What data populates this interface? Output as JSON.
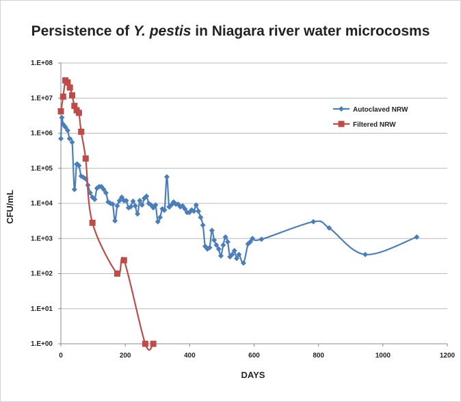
{
  "chart_data": {
    "type": "line",
    "title": {
      "before": "Persistence of ",
      "species": "Y. pestis",
      "after": " in Niagara river water microcosms"
    },
    "xlabel": "DAYS",
    "ylabel": "CFU/mL",
    "xlim": [
      0,
      1200
    ],
    "ylim": [
      1,
      100000000
    ],
    "yscale": "log",
    "grid": "horizontal",
    "legend_position": "top-right",
    "x_ticks": [
      "0",
      "200",
      "400",
      "600",
      "800",
      "1000",
      "1200"
    ],
    "x_tick_values": [
      0,
      200,
      400,
      600,
      800,
      1000,
      1200
    ],
    "y_ticks": [
      "1.E+00",
      "1.E+01",
      "1.E+02",
      "1.E+03",
      "1.E+04",
      "1.E+05",
      "1.E+06",
      "1.E+07",
      "1.E+08"
    ],
    "y_tick_values": [
      1,
      10,
      100,
      1000,
      10000,
      100000,
      1000000,
      10000000,
      100000000
    ],
    "series": [
      {
        "name": "Autoclaved NRW",
        "color": "#4a7ebb",
        "marker": "diamond",
        "smooth": true,
        "points": [
          [
            0,
            700000
          ],
          [
            3,
            2800000
          ],
          [
            7,
            1800000
          ],
          [
            14,
            1500000
          ],
          [
            21,
            1200000
          ],
          [
            27,
            700000
          ],
          [
            35,
            550000
          ],
          [
            42,
            25000
          ],
          [
            49,
            130000
          ],
          [
            56,
            120000
          ],
          [
            63,
            60000
          ],
          [
            70,
            55000
          ],
          [
            77,
            50000
          ],
          [
            84,
            33000
          ],
          [
            91,
            20000
          ],
          [
            98,
            15000
          ],
          [
            105,
            13000
          ],
          [
            112,
            27000
          ],
          [
            119,
            30000
          ],
          [
            126,
            30000
          ],
          [
            133,
            25000
          ],
          [
            140,
            20000
          ],
          [
            147,
            11000
          ],
          [
            154,
            10000
          ],
          [
            161,
            9500
          ],
          [
            168,
            3200
          ],
          [
            175,
            8500
          ],
          [
            182,
            12000
          ],
          [
            189,
            15000
          ],
          [
            196,
            12000
          ],
          [
            203,
            12000
          ],
          [
            210,
            7500
          ],
          [
            217,
            8000
          ],
          [
            224,
            11500
          ],
          [
            231,
            8500
          ],
          [
            238,
            5000
          ],
          [
            245,
            12000
          ],
          [
            252,
            9000
          ],
          [
            259,
            14000
          ],
          [
            266,
            16000
          ],
          [
            273,
            10000
          ],
          [
            280,
            9000
          ],
          [
            287,
            7500
          ],
          [
            294,
            9000
          ],
          [
            301,
            3000
          ],
          [
            308,
            4000
          ],
          [
            315,
            7000
          ],
          [
            322,
            6500
          ],
          [
            329,
            57000
          ],
          [
            336,
            8000
          ],
          [
            343,
            9000
          ],
          [
            350,
            11000
          ],
          [
            357,
            9500
          ],
          [
            364,
            9500
          ],
          [
            371,
            8000
          ],
          [
            378,
            8500
          ],
          [
            385,
            7000
          ],
          [
            392,
            5500
          ],
          [
            399,
            5500
          ],
          [
            406,
            6500
          ],
          [
            413,
            6000
          ],
          [
            420,
            9000
          ],
          [
            427,
            6000
          ],
          [
            434,
            4000
          ],
          [
            441,
            2400
          ],
          [
            448,
            600
          ],
          [
            455,
            500
          ],
          [
            462,
            550
          ],
          [
            469,
            1700
          ],
          [
            476,
            900
          ],
          [
            483,
            650
          ],
          [
            490,
            500
          ],
          [
            497,
            320
          ],
          [
            504,
            650
          ],
          [
            511,
            1100
          ],
          [
            518,
            800
          ],
          [
            525,
            300
          ],
          [
            532,
            350
          ],
          [
            539,
            450
          ],
          [
            546,
            270
          ],
          [
            553,
            350
          ],
          [
            567,
            200
          ],
          [
            581,
            700
          ],
          [
            588,
            800
          ],
          [
            595,
            1000
          ],
          [
            623,
            950
          ],
          [
            784,
            3000
          ],
          [
            833,
            2000
          ],
          [
            945,
            350
          ],
          [
            1105,
            1100
          ]
        ]
      },
      {
        "name": "Filtered NRW",
        "color": "#be4b48",
        "marker": "square",
        "smooth": true,
        "points": [
          [
            0,
            4200000
          ],
          [
            7,
            11000000
          ],
          [
            14,
            32000000
          ],
          [
            21,
            28000000
          ],
          [
            28,
            20000000
          ],
          [
            35,
            12000000
          ],
          [
            42,
            6000000
          ],
          [
            49,
            4500000
          ],
          [
            56,
            3800000
          ],
          [
            63,
            1100000
          ],
          [
            77,
            190000
          ],
          [
            98,
            2800
          ],
          [
            175,
            100
          ],
          [
            196,
            240
          ],
          [
            262,
            1
          ],
          [
            287,
            1
          ]
        ]
      }
    ]
  }
}
